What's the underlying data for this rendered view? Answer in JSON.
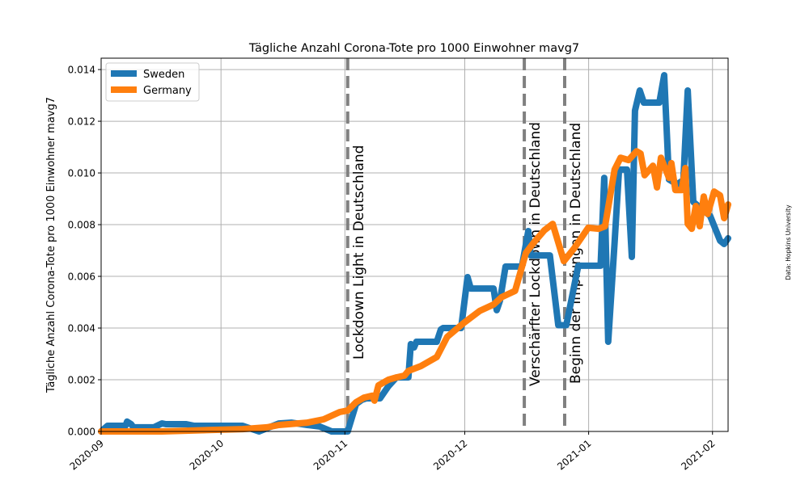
{
  "chart_data": {
    "type": "line",
    "title": "Tägliche Anzahl Corona-Tote pro 1000 Einwohner  mavg7",
    "xlabel": "",
    "ylabel": "Tägliche Anzahl Corona-Tote pro 1000 Einwohner mavg7",
    "x_unit": "days since 2020-09-01",
    "xlim": [
      0,
      156.9
    ],
    "ylim": [
      0,
      0.01444
    ],
    "grid": true,
    "legend_position": "top-left",
    "source_note": "Data: Hopkins University",
    "xticks": [
      {
        "day": 0,
        "label": "2020-09"
      },
      {
        "day": 30,
        "label": "2020-10"
      },
      {
        "day": 61,
        "label": "2020-11"
      },
      {
        "day": 91,
        "label": "2020-12"
      },
      {
        "day": 122,
        "label": "2021-01"
      },
      {
        "day": 153,
        "label": "2021-02"
      }
    ],
    "yticks": [
      {
        "value": 0,
        "label": "0.000"
      },
      {
        "value": 0.002,
        "label": "0.002"
      },
      {
        "value": 0.004,
        "label": "0.004"
      },
      {
        "value": 0.006,
        "label": "0.006"
      },
      {
        "value": 0.008,
        "label": "0.008"
      },
      {
        "value": 0.01,
        "label": "0.010"
      },
      {
        "value": 0.012,
        "label": "0.012"
      },
      {
        "value": 0.014,
        "label": "0.014"
      }
    ],
    "events": [
      {
        "day": 61.7,
        "label": "Lockdown Light in Deutschland"
      },
      {
        "day": 105.9,
        "label": "Verschärfter Lockdown in Deutschland"
      },
      {
        "day": 116.0,
        "label": "Beginn der Impfungen in Deutschland"
      }
    ],
    "series": [
      {
        "name": "Sweden",
        "color": "#1f77b4",
        "points": [
          [
            0,
            0
          ],
          [
            1.6,
            0.00022
          ],
          [
            6.1,
            0.00022
          ],
          [
            6.5,
            0.00038
          ],
          [
            7.5,
            0.00028
          ],
          [
            8.1,
            0.00016
          ],
          [
            13.2,
            0.00016
          ],
          [
            15.2,
            0.00031
          ],
          [
            16.2,
            0.00028
          ],
          [
            21.3,
            0.00028
          ],
          [
            23.3,
            0.00022
          ],
          [
            35.4,
            0.00022
          ],
          [
            39.5,
            0
          ],
          [
            44.5,
            0.00031
          ],
          [
            47.6,
            0.00034
          ],
          [
            51.6,
            0.00025
          ],
          [
            54.7,
            0.00019
          ],
          [
            57.7,
            0
          ],
          [
            61.7,
            0
          ],
          [
            63.8,
            0.00106
          ],
          [
            65.2,
            0.00122
          ],
          [
            66.4,
            0.00128
          ],
          [
            69.8,
            0.00128
          ],
          [
            71.9,
            0.00175
          ],
          [
            73.9,
            0.00209
          ],
          [
            76.9,
            0.00209
          ],
          [
            77.5,
            0.00338
          ],
          [
            78.3,
            0.00325
          ],
          [
            78.9,
            0.00347
          ],
          [
            84,
            0.00347
          ],
          [
            85,
            0.00394
          ],
          [
            85.6,
            0.004
          ],
          [
            90.1,
            0.004
          ],
          [
            91.7,
            0.00597
          ],
          [
            92.5,
            0.00553
          ],
          [
            98.2,
            0.00553
          ],
          [
            99,
            0.00469
          ],
          [
            99.8,
            0.00506
          ],
          [
            101.2,
            0.00638
          ],
          [
            105.3,
            0.00638
          ],
          [
            106.9,
            0.00775
          ],
          [
            107.5,
            0.00681
          ],
          [
            112.3,
            0.00681
          ],
          [
            114.4,
            0.00411
          ],
          [
            116.4,
            0.00411
          ],
          [
            119.4,
            0.00641
          ],
          [
            125,
            0.00641
          ],
          [
            125.9,
            0.00981
          ],
          [
            126.9,
            0.00347
          ],
          [
            128.5,
            0.00731
          ],
          [
            129.6,
            0.01013
          ],
          [
            131.6,
            0.01013
          ],
          [
            132.8,
            0.00675
          ],
          [
            133.6,
            0.01241
          ],
          [
            134.8,
            0.01319
          ],
          [
            135.8,
            0.01272
          ],
          [
            139.7,
            0.01272
          ],
          [
            140.9,
            0.01378
          ],
          [
            142.1,
            0.00975
          ],
          [
            144.1,
            0.00956
          ],
          [
            145.7,
            0.00972
          ],
          [
            146.8,
            0.01319
          ],
          [
            148.2,
            0.00888
          ],
          [
            152.4,
            0.00834
          ],
          [
            154.9,
            0.00738
          ],
          [
            155.9,
            0.00725
          ],
          [
            156.9,
            0.00747
          ]
        ]
      },
      {
        "name": "Germany",
        "color": "#ff7f0e",
        "points": [
          [
            0,
            0
          ],
          [
            15.2,
            0
          ],
          [
            35.4,
            9e-05
          ],
          [
            41.5,
            0.00016
          ],
          [
            44.5,
            0.00025
          ],
          [
            51.6,
            0.00034
          ],
          [
            55.7,
            0.00047
          ],
          [
            59.7,
            0.00075
          ],
          [
            61.7,
            0.00081
          ],
          [
            63.8,
            0.00113
          ],
          [
            65.8,
            0.00131
          ],
          [
            67.8,
            0.00138
          ],
          [
            68.4,
            0.00119
          ],
          [
            69.4,
            0.00178
          ],
          [
            71.9,
            0.002
          ],
          [
            73.9,
            0.00209
          ],
          [
            75.9,
            0.00216
          ],
          [
            76.9,
            0.00234
          ],
          [
            80,
            0.00253
          ],
          [
            84,
            0.00288
          ],
          [
            86.6,
            0.00366
          ],
          [
            90.7,
            0.00419
          ],
          [
            94.7,
            0.00466
          ],
          [
            98.2,
            0.00491
          ],
          [
            100.2,
            0.00519
          ],
          [
            103.6,
            0.00544
          ],
          [
            106.3,
            0.00691
          ],
          [
            108.3,
            0.00731
          ],
          [
            110.9,
            0.00778
          ],
          [
            113,
            0.00803
          ],
          [
            115.8,
            0.00659
          ],
          [
            118.4,
            0.00709
          ],
          [
            121.9,
            0.00788
          ],
          [
            124.5,
            0.00784
          ],
          [
            126.1,
            0.00794
          ],
          [
            128.5,
            0.01013
          ],
          [
            130,
            0.01059
          ],
          [
            132,
            0.0105
          ],
          [
            134,
            0.01084
          ],
          [
            135,
            0.01075
          ],
          [
            136,
            0.00991
          ],
          [
            138.1,
            0.01028
          ],
          [
            139.1,
            0.00944
          ],
          [
            140.1,
            0.01059
          ],
          [
            142.1,
            0.00981
          ],
          [
            142.7,
            0.01038
          ],
          [
            143.7,
            0.00934
          ],
          [
            145.3,
            0.00934
          ],
          [
            146.2,
            0.01019
          ],
          [
            146.8,
            0.00803
          ],
          [
            147.8,
            0.00784
          ],
          [
            148.8,
            0.00872
          ],
          [
            149.8,
            0.00794
          ],
          [
            150.8,
            0.00909
          ],
          [
            151.8,
            0.00841
          ],
          [
            153.4,
            0.00928
          ],
          [
            154.9,
            0.00913
          ],
          [
            155.9,
            0.00825
          ],
          [
            156.9,
            0.00878
          ]
        ]
      }
    ]
  }
}
